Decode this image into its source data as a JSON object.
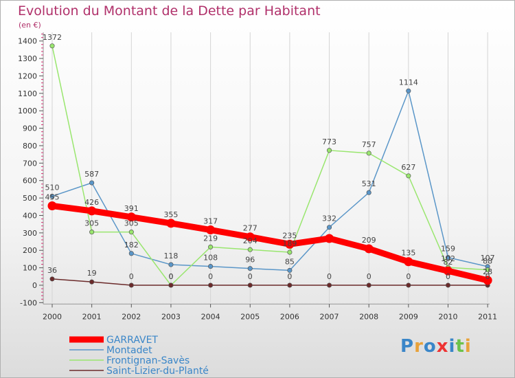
{
  "chart_data": {
    "type": "line",
    "title": "Evolution du Montant de la Dette par Habitant",
    "subtitle": "(en €)",
    "x": [
      "2000",
      "2001",
      "2002",
      "2003",
      "2004",
      "2005",
      "2006",
      "2007",
      "2008",
      "2009",
      "2010",
      "2011"
    ],
    "yticks": [
      -100,
      0,
      100,
      200,
      300,
      400,
      500,
      600,
      700,
      800,
      900,
      1000,
      1100,
      1200,
      1300,
      1400
    ],
    "ylim": [
      -100,
      1450
    ],
    "series": [
      {
        "name": "GARRAVET",
        "color": "#ff0000",
        "values": [
          455,
          426,
          391,
          355,
          317,
          277,
          235,
          268,
          209,
          135,
          82,
          28
        ],
        "labels": [
          "455",
          "426",
          "391",
          "355",
          "317",
          "277",
          "235",
          "",
          "209",
          "135",
          "82",
          "28"
        ]
      },
      {
        "name": "Montadet",
        "color": "#5a96c8",
        "values": [
          510,
          587,
          182,
          118,
          108,
          96,
          85,
          332,
          531,
          1114,
          159,
          107
        ],
        "labels": [
          "510",
          "587",
          "182",
          "118",
          "108",
          "96",
          "85",
          "332",
          "531",
          "1114",
          "159",
          "107"
        ]
      },
      {
        "name": "Frontignan-Savès",
        "color": "#99e66e",
        "values": [
          1372,
          305,
          305,
          0,
          219,
          204,
          189,
          773,
          757,
          627,
          102,
          88
        ],
        "labels": [
          "1372",
          "305",
          "305",
          "0",
          "219",
          "204",
          "189",
          "773",
          "757",
          "627",
          "102",
          "88"
        ]
      },
      {
        "name": "Saint-Lizier-du-Planté",
        "color": "#6b2a2a",
        "values": [
          36,
          19,
          0,
          0,
          0,
          0,
          0,
          0,
          0,
          0,
          0,
          0
        ],
        "labels": [
          "36",
          "19",
          "0",
          "0",
          "0",
          "0",
          "0",
          "0",
          "0",
          "0",
          "0",
          "0"
        ]
      }
    ]
  },
  "logo_text": "Proxiti"
}
